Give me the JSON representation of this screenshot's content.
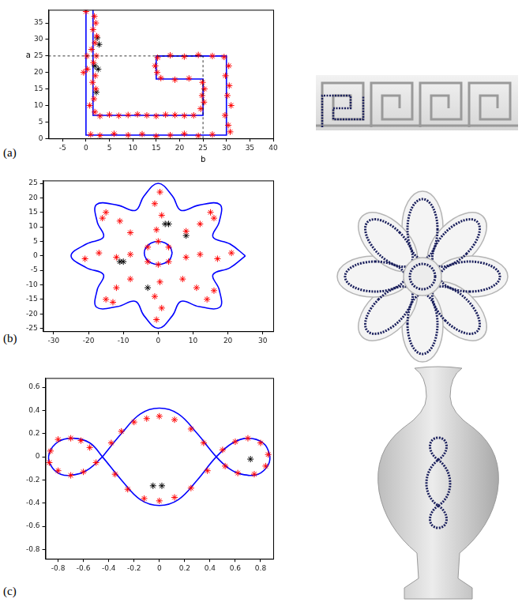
{
  "chart_data": [
    {
      "type": "scatter",
      "panel_label": "(a)",
      "grid": false,
      "xlim": [
        -8,
        40
      ],
      "xticks": [
        -5,
        0,
        5,
        10,
        15,
        20,
        25,
        30,
        35,
        40
      ],
      "ylim": [
        0,
        39
      ],
      "yticks": [
        0,
        5,
        10,
        15,
        20,
        25,
        30,
        35
      ],
      "annotations": [
        {
          "text": "a",
          "axis": "y",
          "x": 25,
          "y": 25
        },
        {
          "text": "b",
          "axis": "x",
          "x": 25,
          "y": 25
        }
      ],
      "series": [
        {
          "type": "line",
          "line_style": "solid",
          "marker": "none",
          "color": "#0000ff",
          "x": [
            0,
            0,
            30,
            30,
            15,
            15,
            25,
            25,
            1.5,
            1.5
          ],
          "y": [
            39,
            1,
            1,
            25,
            25,
            18,
            18,
            7,
            7,
            39
          ]
        },
        {
          "type": "scatter",
          "marker": "star",
          "color": "#ff0000",
          "x": [
            1.8,
            2.1,
            1.5,
            2.3,
            1.9,
            1.2,
            2.2,
            0.3,
            1.6,
            2.0,
            1.4,
            2.1,
            1.7,
            0.8,
            1.9,
            3,
            5,
            7,
            9,
            11,
            13,
            15,
            17,
            19,
            21,
            23,
            24.5,
            25.2,
            24.8,
            25.3,
            24.9,
            22,
            19,
            16,
            15.2,
            14.8,
            15.3,
            18,
            21,
            24,
            27,
            29.5,
            30.5,
            29.8,
            30.6,
            30.2,
            31,
            29.7,
            30.4,
            30.8,
            27,
            24,
            21,
            18,
            15,
            12,
            9,
            6,
            3,
            1,
            0.2,
            0,
            -0.5
          ],
          "y": [
            37,
            35,
            33,
            31,
            29,
            27,
            25,
            21,
            23,
            19,
            17,
            15,
            12,
            10,
            8,
            6.8,
            7.2,
            6.9,
            7.1,
            7.3,
            7,
            6.8,
            7.2,
            7.1,
            6.9,
            7,
            9,
            11,
            13,
            15,
            17,
            18.2,
            17.8,
            18.3,
            20,
            22,
            24.5,
            25.2,
            24.8,
            25.3,
            25,
            24.7,
            22,
            19,
            16,
            13,
            10,
            7,
            4,
            2,
            1.2,
            0.8,
            1.4,
            1,
            0.7,
            1.3,
            1,
            1.4,
            0.9,
            1.2,
            25,
            38.5,
            20
          ]
        },
        {
          "type": "scatter",
          "marker": "star",
          "color": "#000000",
          "x": [
            2.4,
            2.8,
            1.9,
            2.6,
            2.2
          ],
          "y": [
            30.5,
            28.5,
            22,
            21,
            14
          ]
        }
      ]
    },
    {
      "type": "scatter",
      "panel_label": "(b)",
      "grid": false,
      "xlim": [
        -33,
        33
      ],
      "xticks": [
        -30,
        -20,
        -10,
        0,
        10,
        20,
        30
      ],
      "ylim": [
        -26,
        26
      ],
      "yticks": [
        -25,
        -20,
        -15,
        -10,
        -5,
        0,
        5,
        10,
        15,
        20,
        25
      ],
      "series": [
        {
          "type": "line",
          "line_style": "smooth",
          "marker": "none",
          "color": "#0000ff",
          "x": [
            25,
            20.6,
            15.7,
            17.5,
            17.7,
            11.7,
            6.5,
            4.1,
            0,
            -4.1,
            -6.5,
            -11.7,
            -17.7,
            -17.5,
            -15.7,
            -20.6,
            -25,
            -20.6,
            -15.7,
            -17.5,
            -17.7,
            -11.7,
            -6.5,
            -4.1,
            0,
            4.1,
            6.5,
            11.7,
            17.7,
            17.5,
            15.7,
            20.6,
            25
          ],
          "y": [
            0,
            4.1,
            6.5,
            11.7,
            17.7,
            17.5,
            15.7,
            20.6,
            25,
            20.6,
            15.7,
            17.5,
            17.7,
            11.7,
            6.5,
            4.1,
            0,
            -4.1,
            -6.5,
            -11.7,
            -17.7,
            -17.5,
            -15.7,
            -20.6,
            -25,
            -20.6,
            -15.7,
            -17.5,
            -17.7,
            -11.7,
            -6.5,
            -4.1,
            0
          ]
        },
        {
          "type": "line",
          "line_style": "smooth",
          "marker": "none",
          "color": "#0000ff",
          "x": [
            4,
            3.46,
            2,
            0,
            -2,
            -3.46,
            -4,
            -3.46,
            -2,
            0,
            2,
            3.46,
            4
          ],
          "y": [
            1,
            3,
            4.46,
            5,
            4.46,
            3,
            1,
            -1,
            -2.46,
            -3,
            -2.46,
            -1,
            1
          ]
        },
        {
          "type": "scatter",
          "marker": "star",
          "color": "#ff0000",
          "x": [
            0.5,
            -1,
            1,
            -0.5,
            15,
            12,
            8,
            16,
            21,
            17,
            12,
            8,
            14,
            11,
            7,
            16,
            -0.5,
            1,
            -1,
            0.5,
            -15,
            -12,
            -8,
            -13,
            -21,
            -17,
            -12,
            -8,
            -15,
            -11,
            -8,
            -16,
            3,
            -3,
            3,
            -3,
            0,
            0
          ],
          "y": [
            22,
            18,
            14,
            9,
            15,
            11,
            8.5,
            13,
            1,
            -1,
            0.5,
            -0.5,
            -15,
            -11,
            -8,
            -12,
            -22,
            -18,
            -14,
            -9,
            -15,
            -11,
            -8,
            -16,
            -1,
            1,
            -0.5,
            0.5,
            15,
            12,
            8,
            13,
            3,
            3,
            -2,
            -2,
            5,
            -3
          ]
        },
        {
          "type": "scatter",
          "marker": "star",
          "color": "#000000",
          "x": [
            2,
            3,
            -11,
            -10,
            8,
            -3
          ],
          "y": [
            11,
            11,
            -2,
            -2,
            7,
            -11
          ]
        }
      ]
    },
    {
      "type": "scatter",
      "panel_label": "(c)",
      "grid": false,
      "xlim": [
        -0.9,
        0.9
      ],
      "xticks": [
        -0.8,
        -0.6,
        -0.4,
        -0.2,
        0,
        0.2,
        0.4,
        0.6,
        0.8
      ],
      "ylim": [
        -0.88,
        0.68
      ],
      "yticks": [
        -0.8,
        -0.6,
        -0.4,
        -0.2,
        0,
        0.2,
        0.4,
        0.6
      ],
      "series": [
        {
          "type": "line",
          "line_style": "smooth",
          "marker": "none",
          "color": "#0000ff",
          "x": [
            -0.45,
            -0.3,
            -0.15,
            0,
            0.15,
            0.3,
            0.45,
            0.55,
            0.65,
            0.78,
            0.86,
            0.87,
            0.82,
            0.7,
            0.58,
            0.45,
            0.3,
            0.15,
            0,
            -0.15,
            -0.3,
            -0.45,
            -0.55,
            -0.68,
            -0.8,
            -0.87,
            -0.86,
            -0.78,
            -0.65,
            -0.55,
            -0.45
          ],
          "y": [
            0,
            0.2,
            0.37,
            0.42,
            0.37,
            0.2,
            0,
            -0.1,
            -0.15,
            -0.15,
            -0.07,
            0.02,
            0.12,
            0.16,
            0.12,
            0,
            -0.2,
            -0.37,
            -0.42,
            -0.37,
            -0.2,
            0,
            0.12,
            0.16,
            0.13,
            0.03,
            -0.07,
            -0.15,
            -0.15,
            -0.1,
            0
          ]
        },
        {
          "type": "scatter",
          "marker": "star",
          "color": "#ff0000",
          "x": [
            -0.8,
            -0.7,
            -0.62,
            -0.55,
            -0.86,
            -0.87,
            -0.8,
            -0.7,
            -0.6,
            -0.5,
            -0.38,
            -0.3,
            -0.2,
            -0.1,
            0,
            0.12,
            0.25,
            0.35,
            -0.35,
            -0.25,
            -0.12,
            0,
            0.12,
            0.25,
            0.38,
            0.5,
            0.6,
            0.7,
            0.8,
            0.86,
            0.84,
            0.75,
            0.62,
            0.52
          ],
          "y": [
            0.15,
            0.16,
            0.14,
            0.08,
            0.05,
            -0.05,
            -0.12,
            -0.16,
            -0.13,
            -0.05,
            0.12,
            0.22,
            0.3,
            0.33,
            0.35,
            0.32,
            0.24,
            0.12,
            -0.15,
            -0.28,
            -0.36,
            -0.38,
            -0.35,
            -0.27,
            -0.12,
            0.06,
            0.13,
            0.16,
            0.12,
            0.02,
            -0.08,
            -0.15,
            -0.14,
            -0.08
          ]
        },
        {
          "type": "scatter",
          "marker": "star",
          "color": "#000000",
          "x": [
            -0.05,
            0.02,
            0.72
          ],
          "y": [
            -0.25,
            -0.25,
            -0.02
          ]
        }
      ]
    }
  ]
}
